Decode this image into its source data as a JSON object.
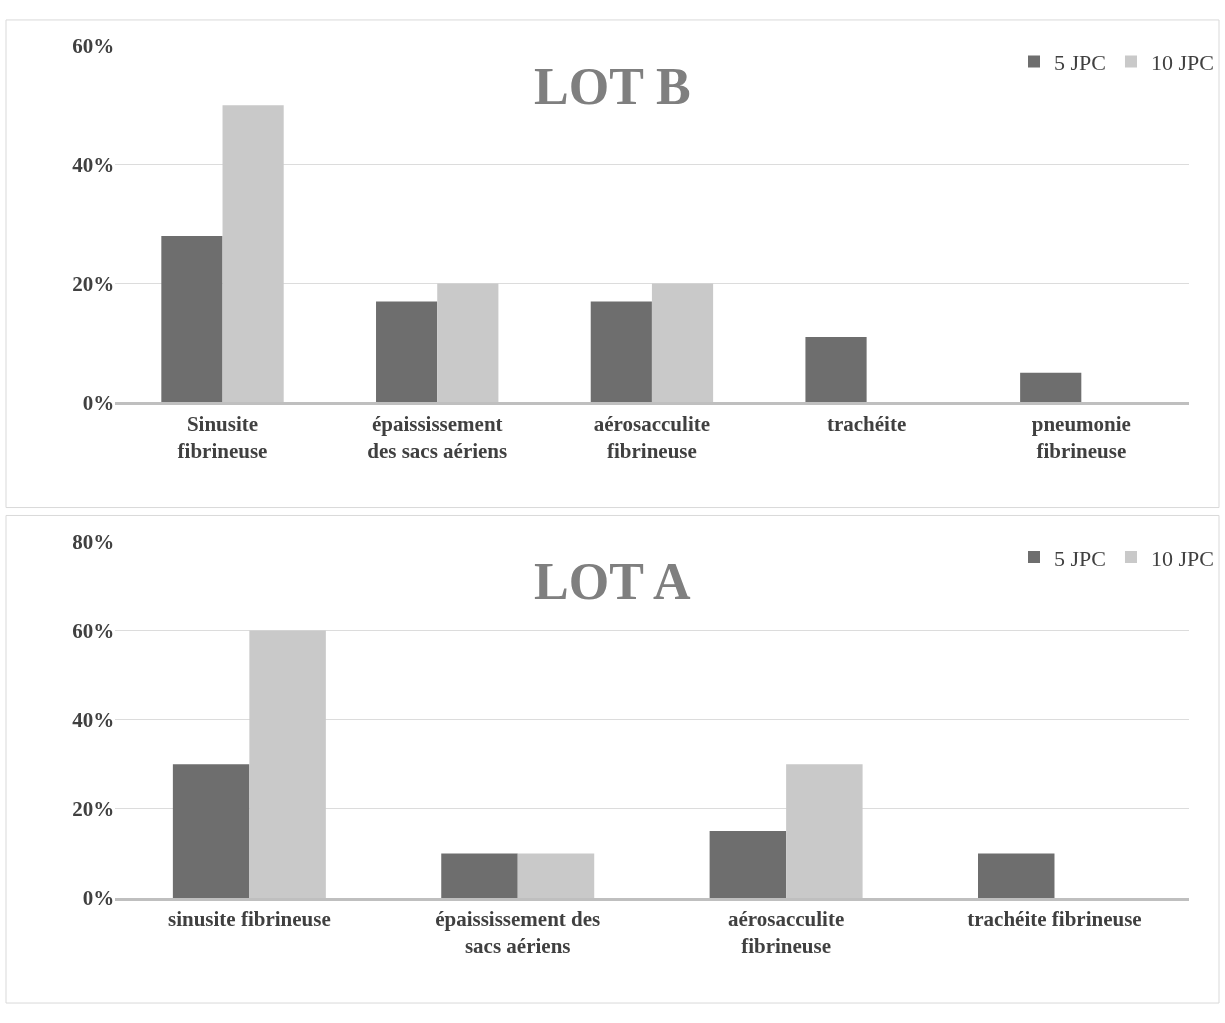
{
  "chart_data": [
    {
      "type": "bar",
      "title": "LOT B",
      "categories": [
        "Sinusite fibrineuse",
        "épaississement des sacs aériens",
        "aérosacculite fibrineuse",
        "trachéite",
        "pneumonie fibrineuse"
      ],
      "series": [
        {
          "name": "5 JPC",
          "color": "#6e6e6e",
          "values": [
            28,
            17,
            17,
            11,
            5
          ]
        },
        {
          "name": "10 JPC",
          "color": "#c9c9c9",
          "values": [
            50,
            20,
            20,
            null,
            null
          ]
        }
      ],
      "ylim": [
        0,
        60
      ],
      "yticks": [
        {
          "value": 0,
          "label": "0%"
        },
        {
          "value": 20,
          "label": "20%"
        },
        {
          "value": 40,
          "label": "40%"
        },
        {
          "value": 60,
          "label": "60%"
        }
      ],
      "grid": "y",
      "legend": "top right"
    },
    {
      "type": "bar",
      "title": "LOT A",
      "categories": [
        "sinusite fibrineuse",
        "épaississement des sacs aériens",
        "aérosacculite fibrineuse",
        "trachéite fibrineuse"
      ],
      "series": [
        {
          "name": "5 JPC",
          "color": "#6e6e6e",
          "values": [
            30,
            10,
            15,
            10
          ]
        },
        {
          "name": "10 JPC",
          "color": "#c9c9c9",
          "values": [
            60,
            10,
            30,
            null
          ]
        }
      ],
      "ylim": [
        0,
        80
      ],
      "yticks": [
        {
          "value": 0,
          "label": "0%"
        },
        {
          "value": 20,
          "label": "20%"
        },
        {
          "value": 40,
          "label": "40%"
        },
        {
          "value": 60,
          "label": "60%"
        },
        {
          "value": 80,
          "label": "80%"
        }
      ],
      "grid": "y",
      "legend": "top right"
    }
  ]
}
